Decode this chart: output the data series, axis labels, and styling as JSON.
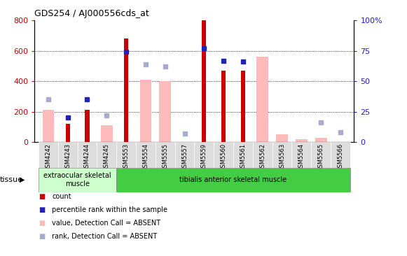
{
  "title": "GDS254 / AJ000556cds_at",
  "categories": [
    "GSM4242",
    "GSM4243",
    "GSM4244",
    "GSM4245",
    "GSM5553",
    "GSM5554",
    "GSM5555",
    "GSM5557",
    "GSM5559",
    "GSM5560",
    "GSM5561",
    "GSM5562",
    "GSM5563",
    "GSM5564",
    "GSM5565",
    "GSM5566"
  ],
  "count_values": [
    null,
    120,
    210,
    null,
    680,
    null,
    null,
    null,
    800,
    470,
    470,
    null,
    null,
    null,
    null,
    null
  ],
  "percentile_rank_values": [
    null,
    20,
    35,
    null,
    74,
    null,
    null,
    null,
    77,
    67,
    66,
    null,
    null,
    null,
    null,
    null
  ],
  "absent_value_values": [
    210,
    null,
    null,
    110,
    null,
    410,
    400,
    null,
    null,
    null,
    null,
    560,
    50,
    20,
    30,
    null
  ],
  "absent_rank_values": [
    35,
    null,
    null,
    22,
    null,
    64,
    62,
    7,
    null,
    null,
    null,
    null,
    null,
    null,
    16,
    8
  ],
  "ylim_left": [
    0,
    800
  ],
  "ylim_right": [
    0,
    100
  ],
  "yticks_left": [
    0,
    200,
    400,
    600,
    800
  ],
  "yticks_right": [
    0,
    25,
    50,
    75,
    100
  ],
  "tissue_groups": [
    {
      "label": "extraocular skeletal\nmuscle",
      "start": 0,
      "end": 4,
      "color": "#ccffcc"
    },
    {
      "label": "tibialis anterior skeletal muscle",
      "start": 4,
      "end": 16,
      "color": "#44cc44"
    }
  ],
  "tissue_label": "tissue",
  "bar_width": 0.4,
  "count_color": "#cc0000",
  "percentile_color": "#2222bb",
  "absent_value_color": "#ffbbbb",
  "absent_rank_color": "#aaaacc",
  "bg_color": "#ffffff",
  "tick_color_left": "#cc0000",
  "tick_color_right": "#2222bb",
  "grid_dotted_vals": [
    200,
    400,
    600
  ],
  "legend_colors": [
    "#cc0000",
    "#2222bb",
    "#ffbbbb",
    "#aaaacc"
  ],
  "legend_labels": [
    "count",
    "percentile rank within the sample",
    "value, Detection Call = ABSENT",
    "rank, Detection Call = ABSENT"
  ]
}
